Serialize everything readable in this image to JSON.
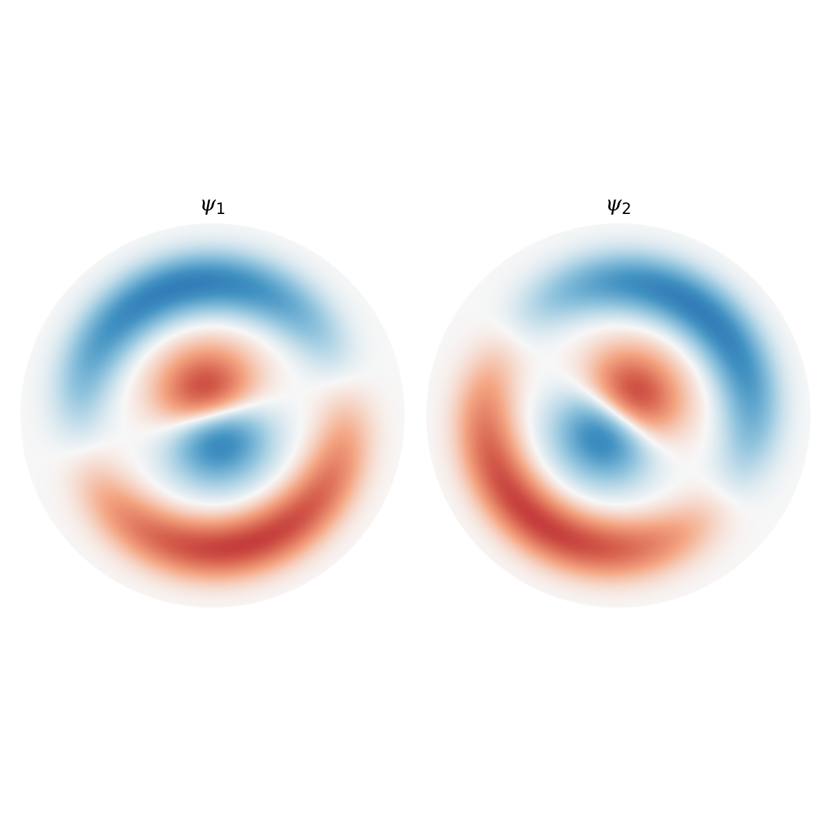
{
  "chart_data": [
    {
      "type": "heatmap",
      "title_symbol": "ψ",
      "title_subscript": "1",
      "colormap": "RdBu_r",
      "domain": "unit-disk",
      "grid": false,
      "axes_visible": false,
      "nodal_line_angle_deg": 15,
      "mode": {
        "angular_order": 1,
        "radial_order": 2
      },
      "value_range": [
        -1,
        1
      ]
    },
    {
      "type": "heatmap",
      "title_symbol": "ψ",
      "title_subscript": "2",
      "colormap": "RdBu_r",
      "domain": "unit-disk",
      "grid": false,
      "axes_visible": false,
      "nodal_line_angle_deg": -37,
      "mode": {
        "angular_order": 1,
        "radial_order": 2
      },
      "value_range": [
        -1,
        1
      ]
    }
  ]
}
